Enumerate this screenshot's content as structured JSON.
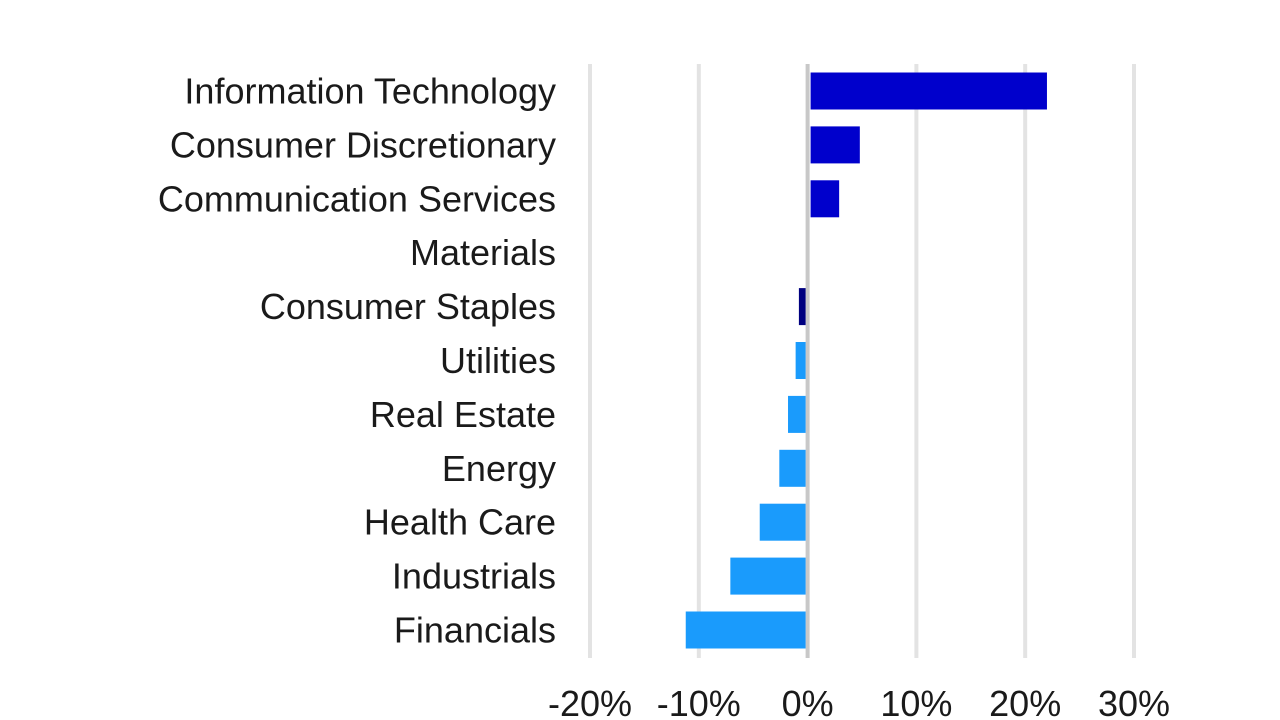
{
  "chart_data": {
    "type": "bar",
    "orientation": "horizontal",
    "title": "",
    "xlabel": "",
    "ylabel": "",
    "categories": [
      "Information Technology",
      "Consumer Discretionary",
      "Communication Services",
      "Materials",
      "Consumer Staples",
      "Utilities",
      "Real Estate",
      "Energy",
      "Health Care",
      "Industrials",
      "Financials"
    ],
    "values": [
      22,
      4.8,
      2.9,
      0,
      -0.8,
      -1.1,
      -1.8,
      -2.6,
      -4.4,
      -7.1,
      -11.2
    ],
    "bar_colors": [
      "#0000CC",
      "#0000CC",
      "#0000CC",
      "#0000CC",
      "#000080",
      "#1A9BFC",
      "#1A9BFC",
      "#1A9BFC",
      "#1A9BFC",
      "#1A9BFC",
      "#1A9BFC"
    ],
    "xlim": [
      -20,
      30
    ],
    "xticks": [
      -20,
      -10,
      0,
      10,
      20,
      30
    ],
    "xtick_labels": [
      "-20%",
      "-10%",
      "0%",
      "10%",
      "20%",
      "30%"
    ],
    "grid": true,
    "legend": "none"
  }
}
